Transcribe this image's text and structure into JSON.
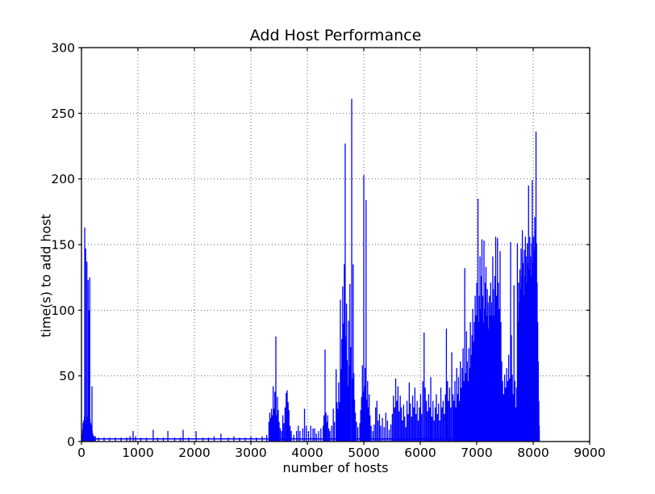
{
  "figure": {
    "title": "Add Host Performance",
    "xlabel": "number of hosts",
    "ylabel": "time(s) to add host"
  },
  "chart_data": {
    "type": "line",
    "title": "Add Host Performance",
    "xlabel": "number of hosts",
    "ylabel": "time(s) to add host",
    "xlim": [
      0,
      9000
    ],
    "ylim": [
      0,
      300
    ],
    "xticks": [
      0,
      1000,
      2000,
      3000,
      4000,
      5000,
      6000,
      7000,
      8000,
      9000
    ],
    "yticks": [
      0,
      50,
      100,
      150,
      200,
      250,
      300
    ],
    "grid": "dotted",
    "legend": "none",
    "line_color": "#0000ff",
    "grid_color": "#555555",
    "axis_color": "#000000",
    "baseline": {
      "x_start": 5,
      "x_end": 8115,
      "y": 2
    },
    "data_notes": "spiky series; each spike is [x, time_seconds]; baseline ~2s between spikes; data ends near x=8110",
    "spikes": [
      [
        8,
        4
      ],
      [
        15,
        6
      ],
      [
        22,
        9
      ],
      [
        28,
        14
      ],
      [
        34,
        8
      ],
      [
        40,
        16
      ],
      [
        46,
        10
      ],
      [
        52,
        19
      ],
      [
        58,
        163
      ],
      [
        63,
        12
      ],
      [
        68,
        22
      ],
      [
        74,
        147
      ],
      [
        79,
        11
      ],
      [
        85,
        16
      ],
      [
        90,
        9
      ],
      [
        96,
        137
      ],
      [
        101,
        13
      ],
      [
        106,
        19
      ],
      [
        112,
        10
      ],
      [
        118,
        123
      ],
      [
        124,
        15
      ],
      [
        130,
        9
      ],
      [
        136,
        100
      ],
      [
        141,
        13
      ],
      [
        147,
        125
      ],
      [
        152,
        17
      ],
      [
        158,
        10
      ],
      [
        163,
        14
      ],
      [
        168,
        8
      ],
      [
        174,
        12
      ],
      [
        180,
        9
      ],
      [
        186,
        42
      ],
      [
        192,
        8
      ],
      [
        198,
        6
      ],
      [
        205,
        5
      ],
      [
        215,
        4
      ],
      [
        230,
        4
      ],
      [
        245,
        4
      ],
      [
        300,
        3
      ],
      [
        400,
        3
      ],
      [
        500,
        3
      ],
      [
        600,
        3
      ],
      [
        700,
        3
      ],
      [
        800,
        3
      ],
      [
        860,
        4
      ],
      [
        915,
        8
      ],
      [
        960,
        4
      ],
      [
        1050,
        3
      ],
      [
        1150,
        3
      ],
      [
        1270,
        9
      ],
      [
        1350,
        3
      ],
      [
        1450,
        3
      ],
      [
        1530,
        8
      ],
      [
        1650,
        3
      ],
      [
        1750,
        3
      ],
      [
        1800,
        9
      ],
      [
        1900,
        3
      ],
      [
        2030,
        8
      ],
      [
        2150,
        3
      ],
      [
        2250,
        3
      ],
      [
        2350,
        4
      ],
      [
        2470,
        6
      ],
      [
        2600,
        3
      ],
      [
        2700,
        4
      ],
      [
        2800,
        3
      ],
      [
        2900,
        3
      ],
      [
        3000,
        4
      ],
      [
        3100,
        3
      ],
      [
        3200,
        4
      ],
      [
        3280,
        5
      ],
      [
        3320,
        15
      ],
      [
        3335,
        22
      ],
      [
        3350,
        18
      ],
      [
        3365,
        25
      ],
      [
        3380,
        20
      ],
      [
        3395,
        42
      ],
      [
        3410,
        25
      ],
      [
        3425,
        38
      ],
      [
        3443,
        80
      ],
      [
        3455,
        20
      ],
      [
        3470,
        34
      ],
      [
        3485,
        24
      ],
      [
        3500,
        15
      ],
      [
        3520,
        10
      ],
      [
        3545,
        8
      ],
      [
        3565,
        20
      ],
      [
        3585,
        14
      ],
      [
        3605,
        26
      ],
      [
        3625,
        37
      ],
      [
        3643,
        39
      ],
      [
        3660,
        30
      ],
      [
        3675,
        24
      ],
      [
        3695,
        12
      ],
      [
        3715,
        8
      ],
      [
        3760,
        5
      ],
      [
        3810,
        8
      ],
      [
        3840,
        12
      ],
      [
        3870,
        8
      ],
      [
        3920,
        10
      ],
      [
        3950,
        25
      ],
      [
        3980,
        12
      ],
      [
        4020,
        8
      ],
      [
        4060,
        12
      ],
      [
        4100,
        10
      ],
      [
        4129,
        10
      ],
      [
        4160,
        6
      ],
      [
        4200,
        8
      ],
      [
        4240,
        10
      ],
      [
        4280,
        12
      ],
      [
        4295,
        20
      ],
      [
        4314,
        70
      ],
      [
        4330,
        22
      ],
      [
        4345,
        15
      ],
      [
        4360,
        20
      ],
      [
        4380,
        10
      ],
      [
        4400,
        8
      ],
      [
        4430,
        12
      ],
      [
        4460,
        25
      ],
      [
        4480,
        15
      ],
      [
        4510,
        55
      ],
      [
        4525,
        30
      ],
      [
        4540,
        25
      ],
      [
        4555,
        45
      ],
      [
        4570,
        30
      ],
      [
        4585,
        108
      ],
      [
        4598,
        55
      ],
      [
        4612,
        78
      ],
      [
        4626,
        118
      ],
      [
        4640,
        90
      ],
      [
        4655,
        135
      ],
      [
        4670,
        227
      ],
      [
        4682,
        80
      ],
      [
        4694,
        105
      ],
      [
        4706,
        62
      ],
      [
        4718,
        42
      ],
      [
        4730,
        92
      ],
      [
        4742,
        58
      ],
      [
        4754,
        120
      ],
      [
        4766,
        72
      ],
      [
        4786,
        261
      ],
      [
        4798,
        48
      ],
      [
        4812,
        135
      ],
      [
        4824,
        52
      ],
      [
        4836,
        32
      ],
      [
        4850,
        22
      ],
      [
        4870,
        15
      ],
      [
        4895,
        11
      ],
      [
        4930,
        14
      ],
      [
        4945,
        24
      ],
      [
        4960,
        34
      ],
      [
        4975,
        58
      ],
      [
        4988,
        38
      ],
      [
        5000,
        203
      ],
      [
        5012,
        42
      ],
      [
        5026,
        56
      ],
      [
        5040,
        184
      ],
      [
        5054,
        32
      ],
      [
        5068,
        46
      ],
      [
        5082,
        26
      ],
      [
        5096,
        36
      ],
      [
        5110,
        20
      ],
      [
        5130,
        12
      ],
      [
        5160,
        8
      ],
      [
        5185,
        13
      ],
      [
        5210,
        26
      ],
      [
        5232,
        31
      ],
      [
        5255,
        16
      ],
      [
        5278,
        21
      ],
      [
        5300,
        12
      ],
      [
        5330,
        18
      ],
      [
        5360,
        11
      ],
      [
        5390,
        22
      ],
      [
        5420,
        16
      ],
      [
        5450,
        9
      ],
      [
        5480,
        13
      ],
      [
        5505,
        21
      ],
      [
        5525,
        35
      ],
      [
        5545,
        26
      ],
      [
        5565,
        48
      ],
      [
        5585,
        31
      ],
      [
        5605,
        42
      ],
      [
        5625,
        23
      ],
      [
        5645,
        35
      ],
      [
        5665,
        26
      ],
      [
        5685,
        16
      ],
      [
        5705,
        28
      ],
      [
        5725,
        19
      ],
      [
        5745,
        11
      ],
      [
        5765,
        31
      ],
      [
        5785,
        21
      ],
      [
        5805,
        45
      ],
      [
        5825,
        29
      ],
      [
        5845,
        19
      ],
      [
        5865,
        35
      ],
      [
        5885,
        26
      ],
      [
        5905,
        41
      ],
      [
        5925,
        21
      ],
      [
        5945,
        31
      ],
      [
        5965,
        16
      ],
      [
        5985,
        26
      ],
      [
        6005,
        36
      ],
      [
        6025,
        21
      ],
      [
        6045,
        46
      ],
      [
        6068,
        83
      ],
      [
        6088,
        41
      ],
      [
        6108,
        31
      ],
      [
        6128,
        23
      ],
      [
        6148,
        36
      ],
      [
        6168,
        26
      ],
      [
        6186,
        49
      ],
      [
        6205,
        19
      ],
      [
        6225,
        31
      ],
      [
        6245,
        16
      ],
      [
        6265,
        26
      ],
      [
        6285,
        36
      ],
      [
        6305,
        21
      ],
      [
        6325,
        29
      ],
      [
        6345,
        16
      ],
      [
        6365,
        41
      ],
      [
        6385,
        26
      ],
      [
        6405,
        31
      ],
      [
        6425,
        21
      ],
      [
        6445,
        36
      ],
      [
        6463,
        86
      ],
      [
        6482,
        46
      ],
      [
        6500,
        31
      ],
      [
        6520,
        41
      ],
      [
        6540,
        26
      ],
      [
        6558,
        68
      ],
      [
        6580,
        36
      ],
      [
        6598,
        31
      ],
      [
        6614,
        46
      ],
      [
        6630,
        26
      ],
      [
        6646,
        56
      ],
      [
        6662,
        36
      ],
      [
        6678,
        49
      ],
      [
        6694,
        31
      ],
      [
        6710,
        61
      ],
      [
        6726,
        41
      ],
      [
        6742,
        56
      ],
      [
        6758,
        71
      ],
      [
        6774,
        46
      ],
      [
        6788,
        132
      ],
      [
        6802,
        52
      ],
      [
        6818,
        84
      ],
      [
        6832,
        61
      ],
      [
        6846,
        46
      ],
      [
        6860,
        71
      ],
      [
        6874,
        56
      ],
      [
        6888,
        91
      ],
      [
        6902,
        66
      ],
      [
        6916,
        81
      ],
      [
        6930,
        101
      ],
      [
        6944,
        76
      ],
      [
        6958,
        91
      ],
      [
        6972,
        111
      ],
      [
        6986,
        96
      ],
      [
        7000,
        121
      ],
      [
        7012,
        96
      ],
      [
        7022,
        185
      ],
      [
        7034,
        91
      ],
      [
        7046,
        111
      ],
      [
        7058,
        141
      ],
      [
        7070,
        101
      ],
      [
        7082,
        126
      ],
      [
        7092,
        154
      ],
      [
        7104,
        111
      ],
      [
        7116,
        91
      ],
      [
        7128,
        153
      ],
      [
        7140,
        101
      ],
      [
        7152,
        121
      ],
      [
        7164,
        133
      ],
      [
        7176,
        96
      ],
      [
        7188,
        116
      ],
      [
        7200,
        106
      ],
      [
        7212,
        86
      ],
      [
        7224,
        111
      ],
      [
        7236,
        96
      ],
      [
        7248,
        121
      ],
      [
        7260,
        106
      ],
      [
        7272,
        96
      ],
      [
        7284,
        141
      ],
      [
        7296,
        116
      ],
      [
        7308,
        96
      ],
      [
        7320,
        126
      ],
      [
        7336,
        156
      ],
      [
        7350,
        111
      ],
      [
        7368,
        155
      ],
      [
        7384,
        121
      ],
      [
        7400,
        101
      ],
      [
        7414,
        145
      ],
      [
        7428,
        91
      ],
      [
        7442,
        61
      ],
      [
        7458,
        46
      ],
      [
        7476,
        36
      ],
      [
        7494,
        51
      ],
      [
        7512,
        41
      ],
      [
        7530,
        56
      ],
      [
        7548,
        46
      ],
      [
        7566,
        66
      ],
      [
        7582,
        48
      ],
      [
        7600,
        152
      ],
      [
        7614,
        81
      ],
      [
        7630,
        51
      ],
      [
        7645,
        36
      ],
      [
        7660,
        119
      ],
      [
        7676,
        46
      ],
      [
        7692,
        26
      ],
      [
        7706,
        41
      ],
      [
        7720,
        151
      ],
      [
        7731,
        91
      ],
      [
        7742,
        121
      ],
      [
        7753,
        106
      ],
      [
        7764,
        131
      ],
      [
        7775,
        116
      ],
      [
        7786,
        147
      ],
      [
        7797,
        126
      ],
      [
        7808,
        161
      ],
      [
        7819,
        136
      ],
      [
        7830,
        111
      ],
      [
        7841,
        146
      ],
      [
        7852,
        126
      ],
      [
        7863,
        156
      ],
      [
        7874,
        141
      ],
      [
        7885,
        121
      ],
      [
        7896,
        151
      ],
      [
        7907,
        136
      ],
      [
        7918,
        195
      ],
      [
        7929,
        131
      ],
      [
        7940,
        156
      ],
      [
        7951,
        141
      ],
      [
        7962,
        126
      ],
      [
        7973,
        151
      ],
      [
        7984,
        199
      ],
      [
        7995,
        136
      ],
      [
        8006,
        156
      ],
      [
        8017,
        146
      ],
      [
        8028,
        171
      ],
      [
        8039,
        161
      ],
      [
        8050,
        236
      ],
      [
        8060,
        151
      ],
      [
        8070,
        121
      ],
      [
        8080,
        91
      ],
      [
        8090,
        61
      ],
      [
        8100,
        31
      ],
      [
        8108,
        12
      ]
    ]
  }
}
